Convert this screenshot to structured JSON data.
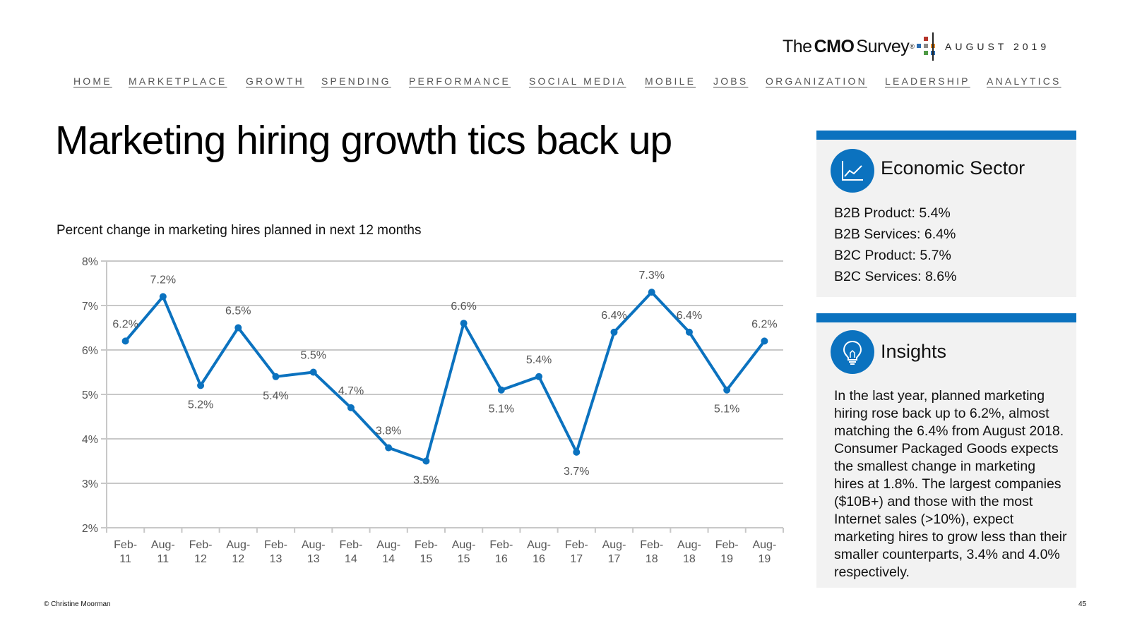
{
  "header": {
    "logo": {
      "the": "The",
      "cmo": "CMO",
      "survey": "Survey",
      "reg": "®"
    },
    "issue_date": "AUGUST 2019",
    "colors": {
      "dot_red": "#b5352b",
      "dot_blue": "#2b6cb0",
      "dot_orange": "#e08a2c",
      "dot_green": "#4f9a45",
      "dot_gray": "#8a8a8a"
    }
  },
  "nav": {
    "items": [
      {
        "label": "HOME"
      },
      {
        "label": "MARKETPLACE"
      },
      {
        "label": "GROWTH"
      },
      {
        "label": "SPENDING"
      },
      {
        "label": "PERFORMANCE"
      },
      {
        "label": "SOCIAL MEDIA"
      },
      {
        "label": "MOBILE"
      },
      {
        "label": "JOBS"
      },
      {
        "label": "ORGANIZATION"
      },
      {
        "label": "LEADERSHIP"
      },
      {
        "label": "ANALYTICS"
      }
    ]
  },
  "page": {
    "title": "Marketing hiring growth tics back up"
  },
  "chart_data": {
    "type": "line",
    "title": "Percent change in marketing hires planned in next 12 months",
    "xlabel": "",
    "ylabel": "",
    "ylim": [
      2,
      8
    ],
    "yticks": [
      "2%",
      "3%",
      "4%",
      "5%",
      "6%",
      "7%",
      "8%"
    ],
    "grid": true,
    "legend": "none",
    "line_color": "#0b72bf",
    "categories": [
      [
        "Feb-",
        "11"
      ],
      [
        "Aug-",
        "11"
      ],
      [
        "Feb-",
        "12"
      ],
      [
        "Aug-",
        "12"
      ],
      [
        "Feb-",
        "13"
      ],
      [
        "Aug-",
        "13"
      ],
      [
        "Feb-",
        "14"
      ],
      [
        "Aug-",
        "14"
      ],
      [
        "Feb-",
        "15"
      ],
      [
        "Aug-",
        "15"
      ],
      [
        "Feb-",
        "16"
      ],
      [
        "Aug-",
        "16"
      ],
      [
        "Feb-",
        "17"
      ],
      [
        "Aug-",
        "17"
      ],
      [
        "Feb-",
        "18"
      ],
      [
        "Aug-",
        "18"
      ],
      [
        "Feb-",
        "19"
      ],
      [
        "Aug-",
        "19"
      ]
    ],
    "values": [
      6.2,
      7.2,
      5.2,
      6.5,
      5.4,
      5.5,
      4.7,
      3.8,
      3.5,
      6.6,
      5.1,
      5.4,
      3.7,
      6.4,
      7.3,
      6.4,
      5.1,
      6.2
    ],
    "data_labels": [
      "6.2%",
      "7.2%",
      "5.2%",
      "6.5%",
      "5.4%",
      "5.5%",
      "4.7%",
      "3.8%",
      "3.5%",
      "6.6%",
      "5.1%",
      "5.4%",
      "3.7%",
      "6.4%",
      "7.3%",
      "6.4%",
      "5.1%",
      "6.2%"
    ]
  },
  "sector_card": {
    "heading": "Economic Sector",
    "icon": "line-chart-icon",
    "items": [
      "B2B Product: 5.4%",
      "B2B Services: 6.4%",
      "B2C Product: 5.7%",
      "B2C Services: 8.6%"
    ]
  },
  "insights_card": {
    "heading": "Insights",
    "icon": "lightbulb-icon",
    "text": "In the last year, planned marketing hiring rose back up to 6.2%, almost matching the 6.4% from August 2018. Consumer Packaged Goods expects the smallest change in marketing hires at 1.8%. The largest companies ($10B+) and those with the most Internet sales (>10%), expect marketing hires to grow less than their smaller counterparts, 3.4% and 4.0% respectively."
  },
  "footer": {
    "copyright": "© Christine Moorman",
    "page_number": "45"
  }
}
